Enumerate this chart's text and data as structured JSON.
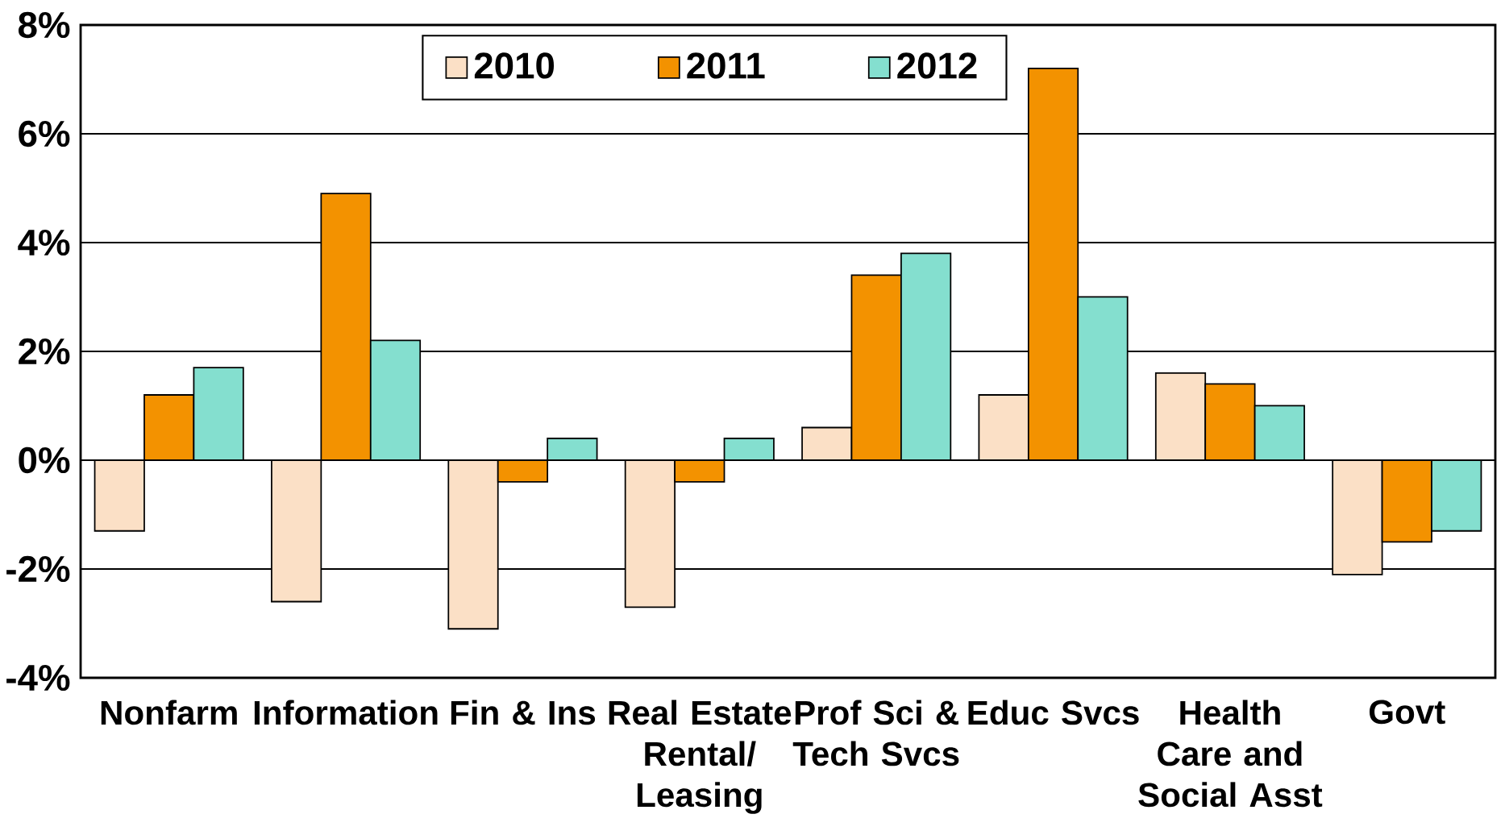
{
  "chart_data": {
    "type": "bar",
    "categories": [
      "Nonfarm",
      "Information",
      "Fin & Ins",
      "Real Estate Rental/ Leasing",
      "Prof Sci & Tech Svcs",
      "Educ Svcs",
      "Health Care and Social Asst",
      "Govt"
    ],
    "series": [
      {
        "name": "2010",
        "color": "#fbe0c6",
        "values": [
          -1.3,
          -2.6,
          -3.1,
          -2.7,
          0.6,
          1.2,
          1.6,
          -2.1
        ]
      },
      {
        "name": "2011",
        "color": "#f39200",
        "values": [
          1.2,
          4.9,
          -0.4,
          -0.4,
          3.4,
          7.2,
          1.4,
          -1.5
        ]
      },
      {
        "name": "2012",
        "color": "#84dfcf",
        "values": [
          1.7,
          2.2,
          0.4,
          0.4,
          3.8,
          3.0,
          1.0,
          -1.3
        ]
      }
    ],
    "ylim": [
      -4,
      8
    ],
    "yticks": [
      {
        "value": -4,
        "label": "-4%"
      },
      {
        "value": -2,
        "label": "-2%"
      },
      {
        "value": 0,
        "label": "0%"
      },
      {
        "value": 2,
        "label": "2%"
      },
      {
        "value": 4,
        "label": "4%"
      },
      {
        "value": 6,
        "label": "6%"
      },
      {
        "value": 8,
        "label": "8%"
      }
    ],
    "grid": "y",
    "legend": "top"
  }
}
